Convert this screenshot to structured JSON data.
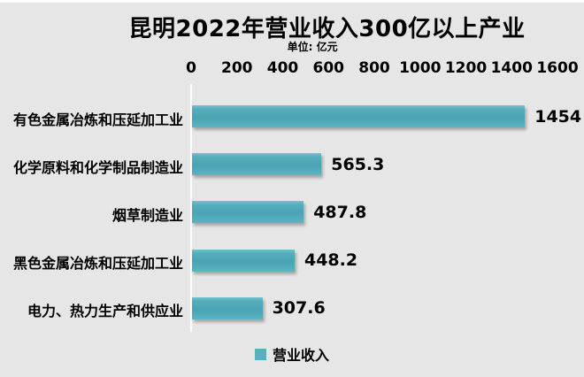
{
  "chart": {
    "title": "昆明2022年营业收入300亿以上产业",
    "unit_label": "单位: 亿元",
    "legend_label": "营业收入",
    "colors": {
      "background": "#e6e6e6",
      "bar_teal": "#4fa8b7",
      "bar_gradient_top": "#72c1cc",
      "bar_gradient_mid": "#4aa3b3",
      "bar_gradient_bottom": "#5eb5c2",
      "legend_swatch": "#57b0be",
      "text": "#000000"
    }
  },
  "chart_data": {
    "type": "bar",
    "orientation": "horizontal",
    "title": "昆明2022年营业收入300亿以上产业",
    "subtitle": "单位: 亿元",
    "unit": "亿元",
    "categories": [
      "有色金属冶炼和压延加工业",
      "化学原料和化学制品制造业",
      "烟草制造业",
      "黑色金属冶炼和压延加工业",
      "电力、热力生产和供应业"
    ],
    "series": [
      {
        "name": "营业收入",
        "values": [
          1454,
          565.3,
          487.8,
          448.2,
          307.6
        ]
      }
    ],
    "value_labels": [
      "1454",
      "565.3",
      "487.8",
      "448.2",
      "307.6"
    ],
    "x_axis": {
      "position": "top",
      "ticks": [
        0,
        200,
        400,
        600,
        800,
        1000,
        1200,
        1400,
        1600
      ],
      "range": [
        0,
        1600
      ]
    },
    "grid": false,
    "legend_position": "bottom",
    "legend_entries": [
      "营业收入"
    ]
  }
}
